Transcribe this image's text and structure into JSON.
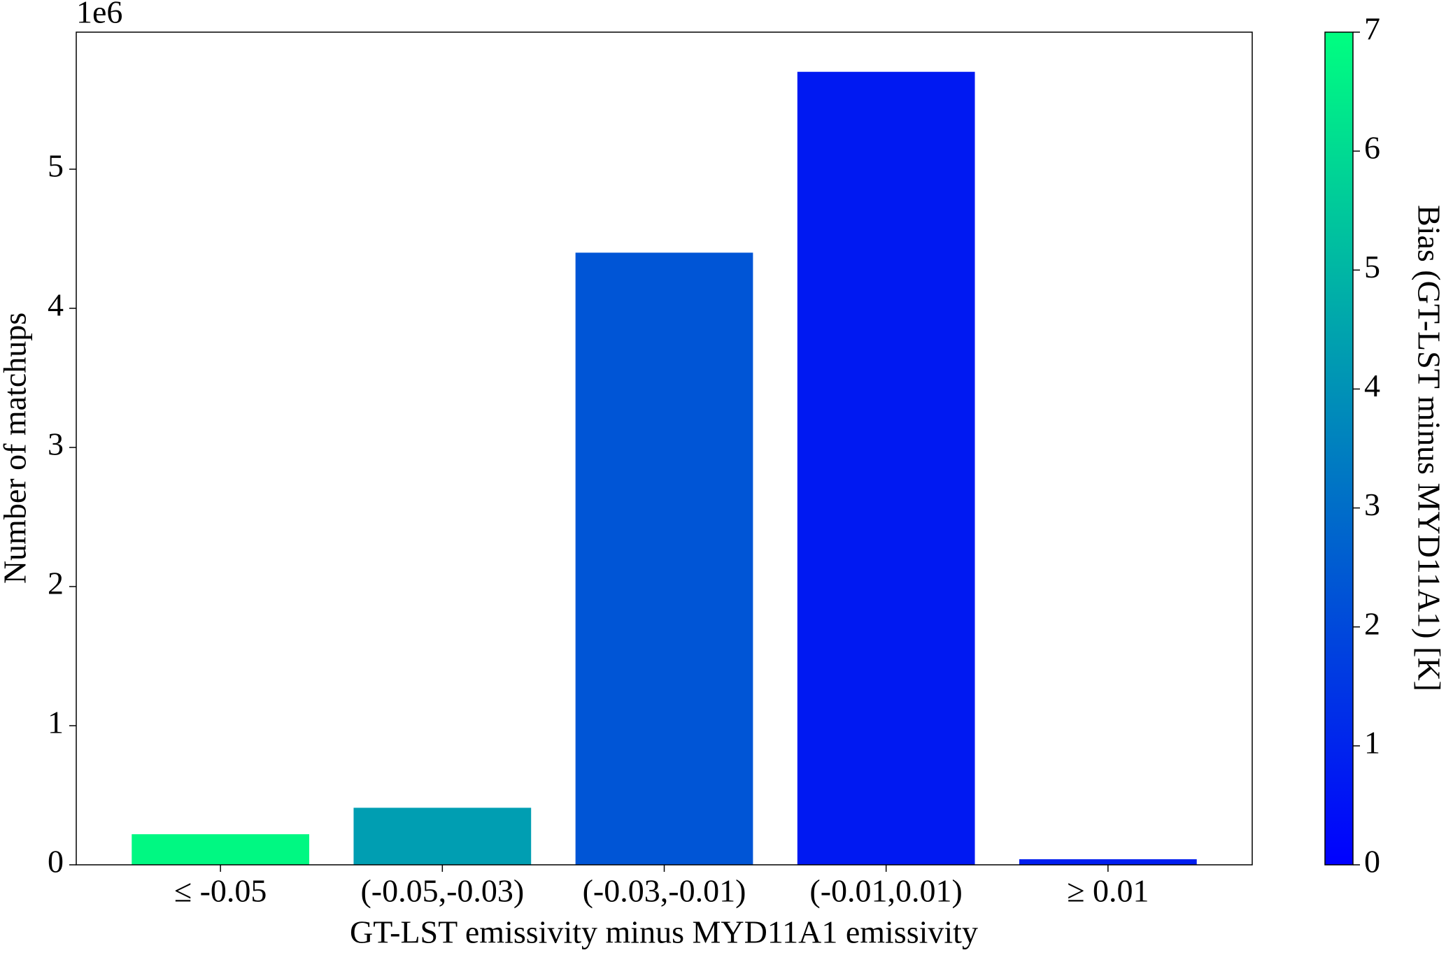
{
  "chart_data": {
    "type": "bar",
    "x_label": "GT-LST emissivity minus MYD11A1 emissivity",
    "y_label": "Number of matchups",
    "y_offset_label": "1e6",
    "categories": [
      "≤ -0.05",
      "(-0.05,-0.03)",
      "(-0.03,-0.01)",
      "(-0.01,0.01)",
      "≥ 0.01"
    ],
    "values": [
      0.22,
      0.41,
      4.4,
      5.7,
      0.04
    ],
    "colors": [
      "#00f882",
      "#009eb2",
      "#0055d6",
      "#0019f2",
      "#001ef0"
    ],
    "ylim": [
      0,
      5.985
    ],
    "yticks": [
      0,
      1,
      2,
      3,
      4,
      5
    ],
    "colorbar": {
      "label": "Bias (GT-LST minus MYD11A1) [K]",
      "lim": [
        0,
        7
      ],
      "ticks": [
        0,
        1,
        2,
        3,
        4,
        5,
        6,
        7
      ],
      "colors": [
        "#0000ff",
        "#00ff80"
      ]
    }
  }
}
